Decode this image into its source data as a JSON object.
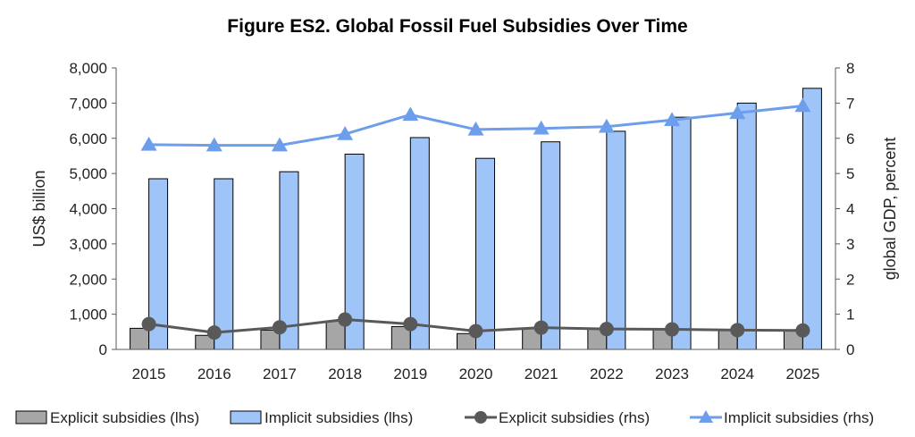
{
  "chart_data": {
    "type": "bar",
    "title": "Figure ES2. Global Fossil Fuel Subsidies Over Time",
    "categories": [
      "2015",
      "2016",
      "2017",
      "2018",
      "2019",
      "2020",
      "2021",
      "2022",
      "2023",
      "2024",
      "2025"
    ],
    "ylabel": "US$ billion",
    "y2label": "global GDP, percent",
    "ylim": [
      0,
      8000
    ],
    "y2lim": [
      0,
      8
    ],
    "yticks": [
      "0",
      "1,000",
      "2,000",
      "3,000",
      "4,000",
      "5,000",
      "6,000",
      "7,000",
      "8,000"
    ],
    "y2ticks": [
      "0",
      "1",
      "2",
      "3",
      "4",
      "5",
      "6",
      "7",
      "8"
    ],
    "grid": false,
    "legend_position": "bottom",
    "series": [
      {
        "name": "Explicit subsidies (lhs)",
        "type": "bar",
        "axis": "left",
        "color": "#a6a6a6",
        "values": [
          600,
          400,
          550,
          800,
          650,
          450,
          600,
          580,
          560,
          540,
          550
        ]
      },
      {
        "name": "Implicit subsidies (lhs)",
        "type": "bar",
        "axis": "left",
        "color": "#9fc5f8",
        "values": [
          4850,
          4850,
          5050,
          5550,
          6020,
          5430,
          5900,
          6200,
          6600,
          7000,
          7420
        ]
      },
      {
        "name": "Explicit subsidies (rhs)",
        "type": "line",
        "axis": "right",
        "color": "#595959",
        "marker": "circle",
        "values": [
          0.72,
          0.48,
          0.63,
          0.85,
          0.72,
          0.52,
          0.62,
          0.58,
          0.57,
          0.55,
          0.54
        ]
      },
      {
        "name": "Implicit subsidies (rhs)",
        "type": "line",
        "axis": "right",
        "color": "#6d9eeb",
        "marker": "triangle",
        "values": [
          5.82,
          5.8,
          5.8,
          6.12,
          6.67,
          6.25,
          6.28,
          6.33,
          6.52,
          6.72,
          6.92
        ]
      }
    ]
  }
}
